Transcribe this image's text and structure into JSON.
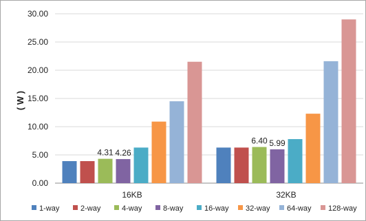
{
  "chart_data": {
    "type": "bar",
    "title": "",
    "xlabel": "",
    "ylabel": "( W )",
    "ylim": [
      0,
      30
    ],
    "yticks": [
      "0.00",
      "5.00",
      "10.00",
      "15.00",
      "20.00",
      "25.00",
      "30.00"
    ],
    "categories": [
      "16KB",
      "32KB"
    ],
    "grid": "horizontal",
    "legend": "bottom",
    "series": [
      {
        "name": "1-way",
        "color": "#4f81bd",
        "values": [
          3.9,
          6.3
        ]
      },
      {
        "name": "2-way",
        "color": "#c0504d",
        "values": [
          3.9,
          6.3
        ]
      },
      {
        "name": "4-way",
        "color": "#9bbb59",
        "values": [
          4.31,
          6.4
        ]
      },
      {
        "name": "8-way",
        "color": "#8064a2",
        "values": [
          4.26,
          5.99
        ]
      },
      {
        "name": "16-way",
        "color": "#4bacc6",
        "values": [
          6.3,
          7.8
        ]
      },
      {
        "name": "32-way",
        "color": "#f79646",
        "values": [
          10.9,
          12.3
        ]
      },
      {
        "name": "64-way",
        "color": "#95b3d7",
        "values": [
          14.5,
          21.6
        ]
      },
      {
        "name": "128-way",
        "color": "#d99694",
        "values": [
          21.5,
          29.0
        ]
      }
    ],
    "data_labels": [
      {
        "series": 2,
        "category": 0,
        "text": "4.31"
      },
      {
        "series": 3,
        "category": 0,
        "text": "4.26"
      },
      {
        "series": 2,
        "category": 1,
        "text": "6.40"
      },
      {
        "series": 3,
        "category": 1,
        "text": "5.99"
      }
    ]
  }
}
